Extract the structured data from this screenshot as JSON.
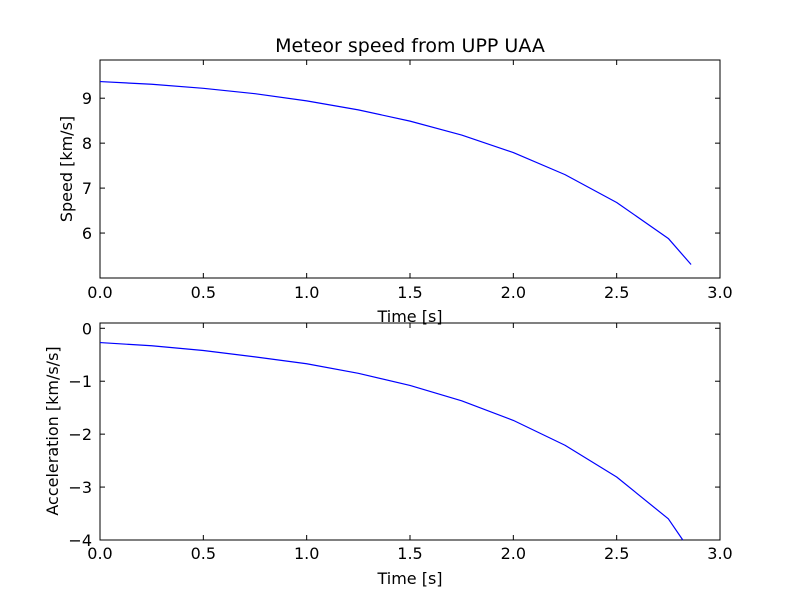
{
  "chart_data": [
    {
      "type": "line",
      "title": "Meteor speed from  UPP UAA",
      "xlabel": "Time [s]",
      "ylabel": "Speed [km/s]",
      "xlim": [
        0,
        3.0
      ],
      "ylim": [
        5.0,
        9.85
      ],
      "xticks": [
        "0.0",
        "0.5",
        "1.0",
        "1.5",
        "2.0",
        "2.5",
        "3.0"
      ],
      "yticks": [
        "6",
        "7",
        "8",
        "9"
      ],
      "grid": false,
      "color": "#0000ff",
      "series": [
        {
          "x": [
            0,
            0.25,
            0.5,
            0.75,
            1.0,
            1.25,
            1.5,
            1.75,
            2.0,
            2.25,
            2.5,
            2.75,
            2.86
          ],
          "y": [
            9.37,
            9.31,
            9.22,
            9.1,
            8.94,
            8.74,
            8.49,
            8.18,
            7.79,
            7.3,
            6.68,
            5.88,
            5.3
          ]
        }
      ]
    },
    {
      "type": "line",
      "title": "",
      "xlabel": "Time [s]",
      "ylabel": "Acceleration [km/s/s]",
      "xlim": [
        0,
        3.0
      ],
      "ylim": [
        -4.0,
        0.1
      ],
      "xticks": [
        "0.0",
        "0.5",
        "1.0",
        "1.5",
        "2.0",
        "2.5",
        "3.0"
      ],
      "yticks": [
        "0",
        "−1",
        "−2",
        "−3",
        "−4"
      ],
      "grid": false,
      "color": "#0000ff",
      "series": [
        {
          "x": [
            0,
            0.25,
            0.5,
            0.75,
            1.0,
            1.25,
            1.5,
            1.75,
            2.0,
            2.25,
            2.5,
            2.75,
            2.82
          ],
          "y": [
            -0.27,
            -0.33,
            -0.42,
            -0.54,
            -0.67,
            -0.85,
            -1.08,
            -1.37,
            -1.74,
            -2.21,
            -2.81,
            -3.6,
            -4.0
          ]
        }
      ]
    }
  ]
}
